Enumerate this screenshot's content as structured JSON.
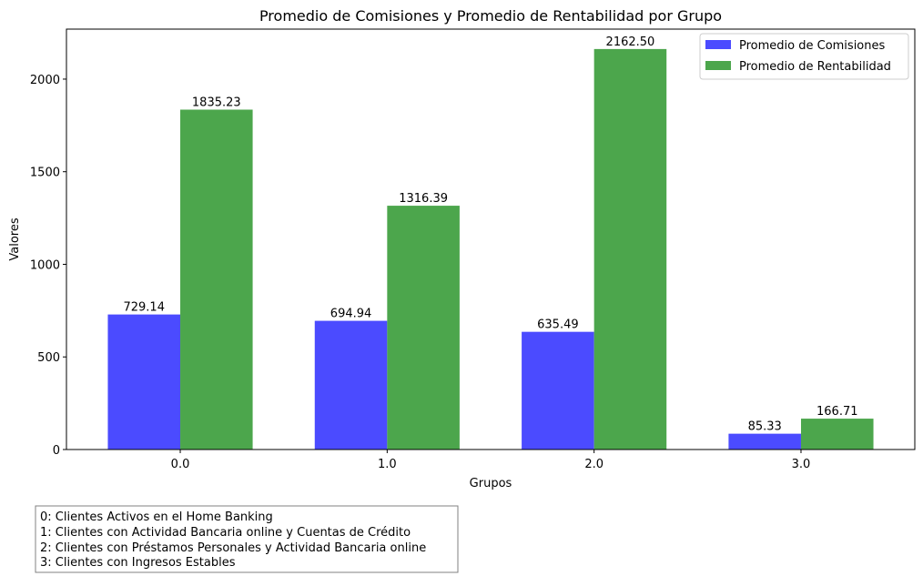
{
  "chart_data": {
    "type": "bar",
    "title": "Promedio de Comisiones y Promedio de Rentabilidad por Grupo",
    "xlabel": "Grupos",
    "ylabel": "Valores",
    "categories": [
      "0.0",
      "1.0",
      "2.0",
      "3.0"
    ],
    "ylim": [
      0,
      2270
    ],
    "yticks": [
      0,
      500,
      1000,
      1500,
      2000
    ],
    "yticks_labels": [
      "0",
      "500",
      "1000",
      "1500",
      "2000"
    ],
    "grid": false,
    "legend_position": "top-right",
    "series": [
      {
        "name": "Promedio de Comisiones",
        "color": "#4b4bff",
        "values": [
          729.14,
          694.94,
          635.49,
          85.33
        ],
        "labels": [
          "729.14",
          "694.94",
          "635.49",
          "85.33"
        ]
      },
      {
        "name": "Promedio de Rentabilidad",
        "color": "#4ca64c",
        "values": [
          1835.23,
          1316.39,
          2162.5,
          166.71
        ],
        "labels": [
          "1835.23",
          "1316.39",
          "2162.50",
          "166.71"
        ]
      }
    ]
  },
  "group_notes": [
    "0: Clientes Activos en el Home Banking",
    "1: Clientes con Actividad Bancaria online y Cuentas de Crédito",
    "2: Clientes con Préstamos Personales y Actividad Bancaria online",
    "3: Clientes con Ingresos Estables"
  ]
}
